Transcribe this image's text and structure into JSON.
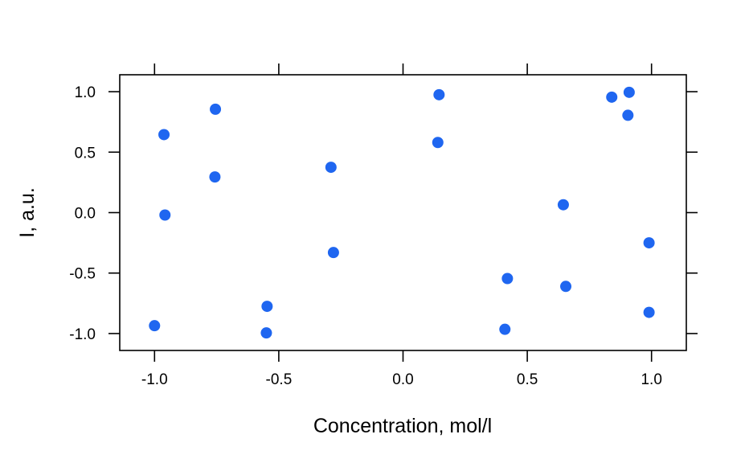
{
  "chart_data": {
    "type": "scatter",
    "title": "",
    "xlabel": "Concentration, mol/l",
    "ylabel": "I, a.u.",
    "xlim": [
      -1.14,
      1.14
    ],
    "ylim": [
      -1.14,
      1.14
    ],
    "x_ticks": [
      -1.0,
      -0.5,
      0.0,
      0.5,
      1.0
    ],
    "x_tick_labels": [
      "-1.0",
      "-0.5",
      "0.0",
      "0.5",
      "1.0"
    ],
    "y_ticks": [
      -1.0,
      -0.5,
      0.0,
      0.5,
      1.0
    ],
    "y_tick_labels": [
      "-1.0",
      "-0.5",
      "0.0",
      "0.5",
      "1.0"
    ],
    "grid": false,
    "legend": "none",
    "point_color": "#1f66f0",
    "series": [
      {
        "x": [
          -1.0,
          -0.962,
          -0.958,
          -0.755,
          -0.757,
          -0.547,
          -0.55,
          -0.29,
          -0.28,
          0.145,
          0.14,
          0.41,
          0.42,
          0.645,
          0.655,
          0.84,
          0.91,
          0.905,
          0.99,
          0.99
        ],
        "y": [
          -0.935,
          0.645,
          -0.02,
          0.855,
          0.295,
          -0.775,
          -0.995,
          0.375,
          -0.33,
          0.975,
          0.58,
          -0.965,
          -0.545,
          0.065,
          -0.61,
          0.955,
          0.995,
          0.805,
          -0.25,
          -0.825
        ]
      }
    ]
  }
}
